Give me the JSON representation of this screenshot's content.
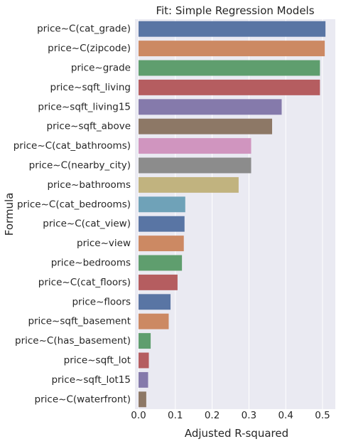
{
  "chart_data": {
    "type": "bar",
    "orientation": "horizontal",
    "title": "Fit: Simple Regression Models",
    "xlabel": "Adjusted R-squared",
    "ylabel": "Formula",
    "xlim": [
      0,
      0.53
    ],
    "xticks": [
      "0.0",
      "0.1",
      "0.2",
      "0.3",
      "0.4",
      "0.5"
    ],
    "xtick_values": [
      0,
      0.1,
      0.2,
      0.3,
      0.4,
      0.5
    ],
    "grid": true,
    "categories": [
      "price~C(cat_grade)",
      "price~C(zipcode)",
      "price~grade",
      "price~sqft_living",
      "price~sqft_living15",
      "price~sqft_above",
      "price~C(cat_bathrooms)",
      "price~C(nearby_city)",
      "price~bathrooms",
      "price~C(cat_bedrooms)",
      "price~C(cat_view)",
      "price~view",
      "price~bedrooms",
      "price~C(cat_floors)",
      "price~floors",
      "price~sqft_basement",
      "price~C(has_basement)",
      "price~sqft_lot",
      "price~sqft_lot15",
      "price~C(waterfront)"
    ],
    "values": [
      0.508,
      0.506,
      0.493,
      0.493,
      0.389,
      0.363,
      0.306,
      0.306,
      0.272,
      0.127,
      0.125,
      0.123,
      0.118,
      0.106,
      0.087,
      0.082,
      0.033,
      0.028,
      0.026,
      0.021
    ],
    "colors": [
      "#5975a4",
      "#cc8963",
      "#5f9e6e",
      "#b55d60",
      "#857aab",
      "#8d7866",
      "#d095bf",
      "#8c8c8c",
      "#c1b37f",
      "#6fa2b8",
      "#5975a4",
      "#cc8963",
      "#5f9e6e",
      "#b55d60",
      "#5975a4",
      "#cc8963",
      "#5f9e6e",
      "#b55d60",
      "#857aab",
      "#8d7866"
    ],
    "background_color": "#eaeaf2"
  }
}
